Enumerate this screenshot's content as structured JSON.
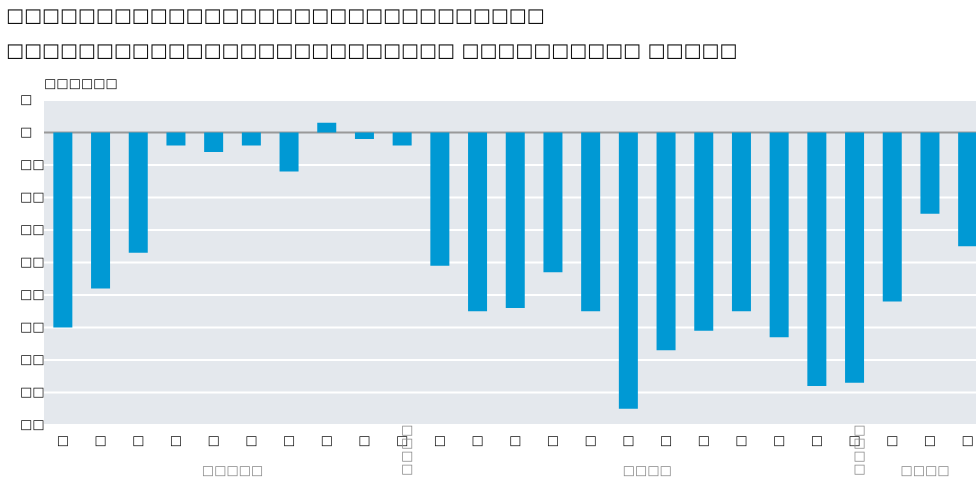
{
  "chart_data": {
    "type": "bar",
    "title": "□□□□□□□□□□□□□□□□□□□□□□□□□□□□□□",
    "subtitle": "□□□□□□□□□□□□□□□□□□□□□□□□□ □□□□□□□□□□ □□□□□",
    "y_label": "□□□□□□",
    "color": "#0099d4",
    "grid": true,
    "ylim": [
      10,
      -90
    ],
    "yticks": [
      {
        "value": 10,
        "label": "□"
      },
      {
        "value": 0,
        "label": "□"
      },
      {
        "value": -10,
        "label": "□□"
      },
      {
        "value": -20,
        "label": "□□"
      },
      {
        "value": -30,
        "label": "□□"
      },
      {
        "value": -40,
        "label": "□□"
      },
      {
        "value": -50,
        "label": "□□"
      },
      {
        "value": -60,
        "label": "□□"
      },
      {
        "value": -70,
        "label": "□□"
      },
      {
        "value": -80,
        "label": "□□"
      },
      {
        "value": -90,
        "label": "□□"
      }
    ],
    "groups": [
      {
        "label": "□□□□□",
        "categories": [
          "□",
          "□",
          "□",
          "□",
          "□",
          "□",
          "□",
          "□",
          "□",
          "□"
        ],
        "values": [
          -60,
          -48,
          -37,
          -4,
          -6,
          -4,
          -12,
          3,
          -2,
          -4
        ]
      },
      {
        "label": "□□□□",
        "separator": "□□□□",
        "categories": [
          "□",
          "□",
          "□",
          "□",
          "□",
          "□",
          "□",
          "□",
          "□",
          "□",
          "□",
          "□"
        ],
        "values": [
          -41,
          -55,
          -54,
          -43,
          -55,
          -85,
          -67,
          -61,
          -55,
          -63,
          -78,
          -77
        ]
      },
      {
        "label": "□□□□",
        "separator": "□□□□",
        "categories": [
          "□",
          "□",
          "□"
        ],
        "values": [
          -52,
          -25,
          -35
        ]
      }
    ]
  }
}
